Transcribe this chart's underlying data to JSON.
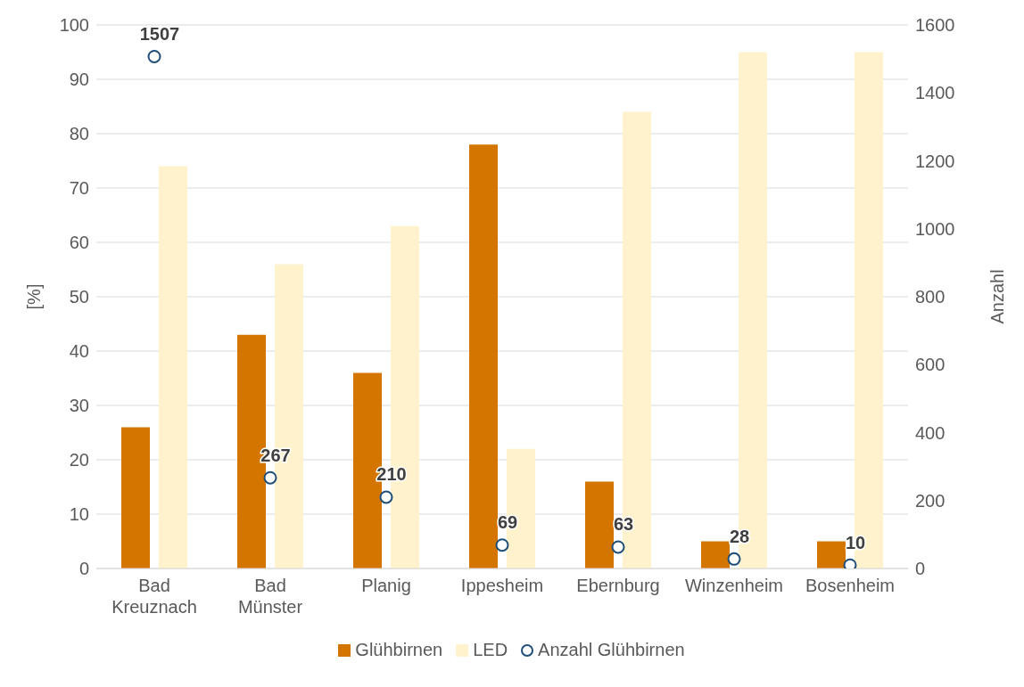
{
  "chart_data": {
    "type": "bar",
    "categories": [
      "Bad Kreuznach",
      "Bad Münster",
      "Planig",
      "Ippesheim",
      "Ebernburg",
      "Winzenheim",
      "Bosenheim"
    ],
    "series": [
      {
        "name": "Glühbirnen",
        "color": "#d47500",
        "values": [
          26,
          43,
          36,
          78,
          16,
          5,
          5
        ]
      },
      {
        "name": "LED",
        "color": "#fff2cc",
        "values": [
          74,
          56,
          63,
          22,
          84,
          95,
          95
        ]
      },
      {
        "name": "Anzahl Glühbirnen",
        "type": "scatter",
        "axis": "y2",
        "marker": "circle",
        "color": "#1f4e79",
        "values": [
          1507,
          267,
          210,
          69,
          63,
          28,
          10
        ],
        "value_labels": [
          "1507",
          "267",
          "210",
          "69",
          "63",
          "28",
          "10"
        ]
      }
    ],
    "ylabel": "[%]",
    "y2label": "Anzahl",
    "ylim": [
      0,
      100
    ],
    "yticks": [
      0,
      10,
      20,
      30,
      40,
      50,
      60,
      70,
      80,
      90,
      100
    ],
    "y2lim": [
      0,
      1600
    ],
    "y2ticks": [
      0,
      200,
      400,
      600,
      800,
      1000,
      1200,
      1400,
      1600
    ],
    "grid": "y",
    "legend": "bottom"
  }
}
